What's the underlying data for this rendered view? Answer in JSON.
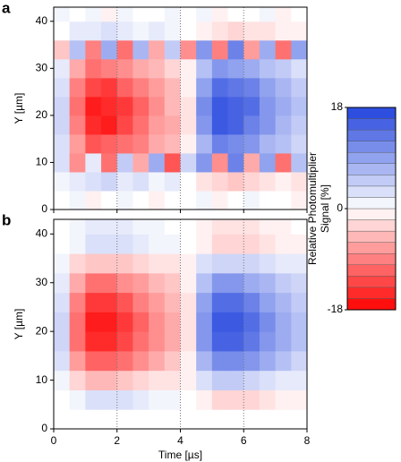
{
  "chart_data": [
    {
      "type": "heatmap",
      "panel_label": "a",
      "ylabel": "Y [µm]",
      "x": [
        0.25,
        0.75,
        1.25,
        1.75,
        2.25,
        2.75,
        3.25,
        3.75,
        4.25,
        4.75,
        5.25,
        5.75,
        6.25,
        6.75,
        7.25,
        7.75
      ],
      "y": [
        2,
        6,
        10,
        14,
        18,
        22,
        26,
        30,
        34,
        38,
        42
      ],
      "z": [
        [
          0,
          1,
          -1,
          0,
          1,
          0,
          -1,
          0,
          0,
          1,
          -1,
          0,
          1,
          0,
          0,
          -1
        ],
        [
          1,
          2,
          3,
          4,
          2,
          3,
          1,
          2,
          0,
          -2,
          -3,
          -4,
          -3,
          -2,
          -1,
          -2
        ],
        [
          3,
          -8,
          2,
          -10,
          5,
          -6,
          8,
          -12,
          4,
          10,
          -8,
          12,
          -6,
          9,
          -10,
          6
        ],
        [
          3,
          -7,
          -12,
          -11,
          -10,
          -9,
          -6,
          -5,
          -1,
          7,
          12,
          11,
          10,
          7,
          6,
          4
        ],
        [
          4,
          -9,
          -15,
          -16,
          -13,
          -10,
          -7,
          -6,
          -2,
          10,
          16,
          15,
          12,
          10,
          7,
          5
        ],
        [
          4,
          -10,
          -16,
          -15,
          -14,
          -11,
          -8,
          -5,
          -2,
          11,
          16,
          15,
          14,
          10,
          8,
          6
        ],
        [
          3,
          -9,
          -13,
          -14,
          -11,
          -9,
          -7,
          -5,
          -1,
          9,
          14,
          13,
          12,
          9,
          7,
          5
        ],
        [
          2,
          -6,
          -10,
          -9,
          -8,
          -6,
          -5,
          -3,
          -1,
          6,
          10,
          9,
          8,
          6,
          5,
          3
        ],
        [
          -4,
          6,
          -9,
          8,
          -10,
          7,
          -6,
          5,
          -8,
          10,
          -9,
          12,
          -7,
          8,
          -10,
          9
        ],
        [
          0,
          2,
          2,
          3,
          2,
          1,
          2,
          1,
          0,
          -1,
          -2,
          -3,
          -2,
          -2,
          -1,
          -1
        ],
        [
          1,
          0,
          1,
          -1,
          1,
          0,
          0,
          1,
          0,
          1,
          -1,
          0,
          0,
          1,
          -1,
          0
        ]
      ],
      "xlim": [
        0,
        8
      ],
      "ylim": [
        0,
        43
      ],
      "xticks": [
        0,
        2,
        4,
        6,
        8
      ],
      "yticks": [
        0,
        10,
        20,
        30,
        40
      ],
      "grid": true
    },
    {
      "type": "heatmap",
      "panel_label": "b",
      "ylabel": "Y [µm]",
      "xlabel": "Time [µs]",
      "x": [
        0.25,
        0.75,
        1.25,
        1.75,
        2.25,
        2.75,
        3.25,
        3.75,
        4.25,
        4.75,
        5.25,
        5.75,
        6.25,
        6.75,
        7.25,
        7.75
      ],
      "y": [
        2,
        6,
        10,
        14,
        18,
        22,
        26,
        30,
        34,
        38,
        42
      ],
      "z": [
        [
          0,
          0,
          0,
          0,
          0,
          0,
          0,
          0,
          0,
          0,
          0,
          0,
          0,
          0,
          0,
          0
        ],
        [
          0,
          1,
          3,
          3,
          3,
          2,
          1,
          1,
          0,
          -1,
          -3,
          -3,
          -3,
          -2,
          -1,
          -1
        ],
        [
          1,
          -3,
          -5,
          -5,
          -4,
          -3,
          -2,
          -2,
          -1,
          3,
          5,
          5,
          4,
          3,
          2,
          2
        ],
        [
          3,
          -7,
          -11,
          -11,
          -10,
          -8,
          -6,
          -4,
          -1,
          7,
          11,
          11,
          10,
          8,
          6,
          4
        ],
        [
          4,
          -10,
          -15,
          -15,
          -13,
          -10,
          -8,
          -6,
          -2,
          10,
          15,
          15,
          13,
          10,
          8,
          6
        ],
        [
          4,
          -10,
          -16,
          -16,
          -14,
          -11,
          -8,
          -6,
          -2,
          10,
          16,
          16,
          14,
          11,
          8,
          6
        ],
        [
          3,
          -9,
          -14,
          -14,
          -12,
          -9,
          -7,
          -5,
          -2,
          9,
          14,
          14,
          12,
          9,
          7,
          5
        ],
        [
          2,
          -6,
          -10,
          -10,
          -8,
          -7,
          -5,
          -4,
          -1,
          6,
          10,
          10,
          8,
          7,
          5,
          4
        ],
        [
          1,
          -3,
          -4,
          -4,
          -4,
          -3,
          -2,
          -2,
          -1,
          3,
          4,
          4,
          4,
          3,
          2,
          2
        ],
        [
          0,
          1,
          3,
          3,
          3,
          2,
          1,
          1,
          0,
          -1,
          -3,
          -3,
          -3,
          -2,
          -1,
          -1
        ],
        [
          0,
          1,
          2,
          2,
          2,
          1,
          1,
          0,
          0,
          -1,
          -2,
          -2,
          -2,
          -1,
          -1,
          0
        ]
      ],
      "xlim": [
        0,
        8
      ],
      "ylim": [
        0,
        43
      ],
      "xticks": [
        0,
        2,
        4,
        6,
        8
      ],
      "yticks": [
        0,
        10,
        20,
        30,
        40
      ],
      "grid": true
    }
  ],
  "colorbar": {
    "label": [
      "Relative Photomultiplier",
      "Signal [%]"
    ],
    "clim": [
      -18,
      18
    ],
    "ticks": [
      -18,
      0,
      18
    ],
    "colors": {
      "negative": "#ff0000",
      "zero": "#ffffff",
      "positive": "#2244dd"
    }
  }
}
